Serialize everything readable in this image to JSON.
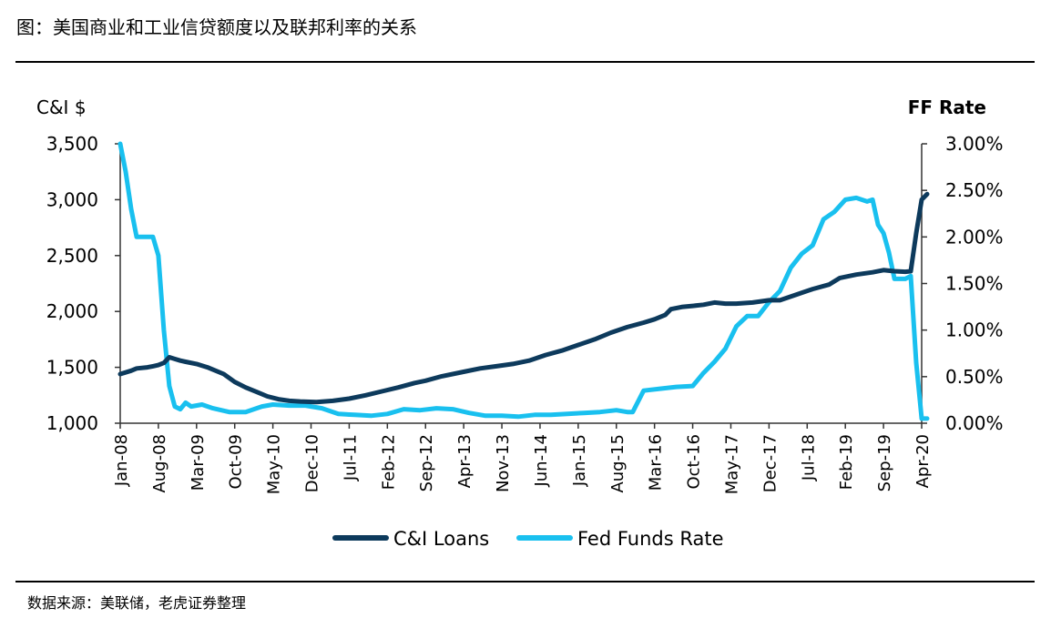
{
  "figure_title": "图：美国商业和工业信贷额度以及联邦利率的关系",
  "source_note": "数据来源：美联储，老虎证券整理",
  "chart_data": {
    "type": "line",
    "title": "",
    "ylabel_left": "C&I $",
    "ylabel_right": "FF Rate",
    "y_left": {
      "min": 1000,
      "max": 3500,
      "ticks": [
        1000,
        1500,
        2000,
        2500,
        3000,
        3500
      ],
      "tick_labels": [
        "1,000",
        "1,500",
        "2,000",
        "2,500",
        "3,000",
        "3,500"
      ]
    },
    "y_right": {
      "min": 0,
      "max": 3,
      "ticks": [
        0,
        0.5,
        1,
        1.5,
        2,
        2.5,
        3
      ],
      "tick_labels": [
        "0.00%",
        "0.50%",
        "1.00%",
        "1.50%",
        "2.00%",
        "2.50%",
        "3.00%"
      ]
    },
    "x_range": [
      "2008-01",
      "2020-04"
    ],
    "x_ticks": [
      {
        "date": "2008-01",
        "label": "Jan-08"
      },
      {
        "date": "2008-08",
        "label": "Aug-08"
      },
      {
        "date": "2009-03",
        "label": "Mar-09"
      },
      {
        "date": "2009-10",
        "label": "Oct-09"
      },
      {
        "date": "2010-05",
        "label": "May-10"
      },
      {
        "date": "2010-12",
        "label": "Dec-10"
      },
      {
        "date": "2011-07",
        "label": "Jul-11"
      },
      {
        "date": "2012-02",
        "label": "Feb-12"
      },
      {
        "date": "2012-09",
        "label": "Sep-12"
      },
      {
        "date": "2013-04",
        "label": "Apr-13"
      },
      {
        "date": "2013-11",
        "label": "Nov-13"
      },
      {
        "date": "2014-06",
        "label": "Jun-14"
      },
      {
        "date": "2015-01",
        "label": "Jan-15"
      },
      {
        "date": "2015-08",
        "label": "Aug-15"
      },
      {
        "date": "2016-03",
        "label": "Mar-16"
      },
      {
        "date": "2016-10",
        "label": "Oct-16"
      },
      {
        "date": "2017-05",
        "label": "May-17"
      },
      {
        "date": "2017-12",
        "label": "Dec-17"
      },
      {
        "date": "2018-07",
        "label": "Jul-18"
      },
      {
        "date": "2019-02",
        "label": "Feb-19"
      },
      {
        "date": "2019-09",
        "label": "Sep-19"
      },
      {
        "date": "2020-04",
        "label": "Apr-20"
      }
    ],
    "legend_position": "bottom-center",
    "grid": false,
    "series": [
      {
        "name": "C&I Loans",
        "axis": "left",
        "color": "#0d3a5c",
        "points": [
          [
            "2008-01",
            1440
          ],
          [
            "2008-03",
            1470
          ],
          [
            "2008-04",
            1490
          ],
          [
            "2008-06",
            1500
          ],
          [
            "2008-07",
            1510
          ],
          [
            "2008-08",
            1520
          ],
          [
            "2008-09",
            1540
          ],
          [
            "2008-10",
            1590
          ],
          [
            "2008-11",
            1575
          ],
          [
            "2008-12",
            1560
          ],
          [
            "2009-01",
            1550
          ],
          [
            "2009-03",
            1530
          ],
          [
            "2009-05",
            1500
          ],
          [
            "2009-06",
            1480
          ],
          [
            "2009-08",
            1440
          ],
          [
            "2009-10",
            1370
          ],
          [
            "2009-12",
            1320
          ],
          [
            "2010-02",
            1280
          ],
          [
            "2010-04",
            1240
          ],
          [
            "2010-06",
            1215
          ],
          [
            "2010-08",
            1200
          ],
          [
            "2010-10",
            1195
          ],
          [
            "2011-01",
            1190
          ],
          [
            "2011-04",
            1200
          ],
          [
            "2011-07",
            1220
          ],
          [
            "2011-10",
            1250
          ],
          [
            "2012-01",
            1285
          ],
          [
            "2012-04",
            1320
          ],
          [
            "2012-07",
            1360
          ],
          [
            "2012-09",
            1380
          ],
          [
            "2012-12",
            1420
          ],
          [
            "2013-04",
            1460
          ],
          [
            "2013-07",
            1490
          ],
          [
            "2013-10",
            1510
          ],
          [
            "2014-01",
            1530
          ],
          [
            "2014-04",
            1560
          ],
          [
            "2014-07",
            1610
          ],
          [
            "2014-10",
            1650
          ],
          [
            "2015-01",
            1700
          ],
          [
            "2015-04",
            1750
          ],
          [
            "2015-07",
            1810
          ],
          [
            "2015-10",
            1860
          ],
          [
            "2016-01",
            1900
          ],
          [
            "2016-03",
            1930
          ],
          [
            "2016-05",
            1970
          ],
          [
            "2016-06",
            2020
          ],
          [
            "2016-08",
            2040
          ],
          [
            "2016-10",
            2050
          ],
          [
            "2016-12",
            2060
          ],
          [
            "2017-02",
            2080
          ],
          [
            "2017-04",
            2070
          ],
          [
            "2017-06",
            2070
          ],
          [
            "2017-09",
            2080
          ],
          [
            "2017-12",
            2100
          ],
          [
            "2018-02",
            2100
          ],
          [
            "2018-05",
            2150
          ],
          [
            "2018-08",
            2200
          ],
          [
            "2018-11",
            2240
          ],
          [
            "2019-01",
            2300
          ],
          [
            "2019-04",
            2330
          ],
          [
            "2019-07",
            2350
          ],
          [
            "2019-09",
            2370
          ],
          [
            "2019-11",
            2360
          ],
          [
            "2020-01",
            2355
          ],
          [
            "2020-02",
            2360
          ],
          [
            "2020-03",
            2700
          ],
          [
            "2020-04",
            3000
          ],
          [
            "2020-05",
            3050
          ]
        ]
      },
      {
        "name": "Fed Funds Rate",
        "axis": "right",
        "color": "#19c0ef",
        "points": [
          [
            "2008-01",
            3.0
          ],
          [
            "2008-02",
            2.7
          ],
          [
            "2008-03",
            2.3
          ],
          [
            "2008-04",
            2.0
          ],
          [
            "2008-05",
            2.0
          ],
          [
            "2008-06",
            2.0
          ],
          [
            "2008-07",
            2.0
          ],
          [
            "2008-08",
            1.8
          ],
          [
            "2008-09",
            1.0
          ],
          [
            "2008-10",
            0.4
          ],
          [
            "2008-11",
            0.18
          ],
          [
            "2008-12",
            0.15
          ],
          [
            "2009-01",
            0.22
          ],
          [
            "2009-02",
            0.18
          ],
          [
            "2009-04",
            0.2
          ],
          [
            "2009-06",
            0.16
          ],
          [
            "2009-09",
            0.12
          ],
          [
            "2009-12",
            0.12
          ],
          [
            "2010-03",
            0.18
          ],
          [
            "2010-05",
            0.2
          ],
          [
            "2010-08",
            0.19
          ],
          [
            "2010-11",
            0.19
          ],
          [
            "2011-02",
            0.16
          ],
          [
            "2011-05",
            0.1
          ],
          [
            "2011-08",
            0.09
          ],
          [
            "2011-11",
            0.08
          ],
          [
            "2012-02",
            0.1
          ],
          [
            "2012-05",
            0.15
          ],
          [
            "2012-08",
            0.14
          ],
          [
            "2012-11",
            0.16
          ],
          [
            "2013-02",
            0.15
          ],
          [
            "2013-05",
            0.11
          ],
          [
            "2013-08",
            0.08
          ],
          [
            "2013-11",
            0.08
          ],
          [
            "2014-02",
            0.07
          ],
          [
            "2014-05",
            0.09
          ],
          [
            "2014-08",
            0.09
          ],
          [
            "2014-11",
            0.1
          ],
          [
            "2015-02",
            0.11
          ],
          [
            "2015-05",
            0.12
          ],
          [
            "2015-08",
            0.14
          ],
          [
            "2015-10",
            0.12
          ],
          [
            "2015-11",
            0.12
          ],
          [
            "2016-01",
            0.35
          ],
          [
            "2016-04",
            0.37
          ],
          [
            "2016-07",
            0.39
          ],
          [
            "2016-10",
            0.4
          ],
          [
            "2016-12",
            0.54
          ],
          [
            "2017-02",
            0.66
          ],
          [
            "2017-04",
            0.8
          ],
          [
            "2017-06",
            1.04
          ],
          [
            "2017-08",
            1.15
          ],
          [
            "2017-10",
            1.15
          ],
          [
            "2017-12",
            1.3
          ],
          [
            "2018-02",
            1.42
          ],
          [
            "2018-04",
            1.67
          ],
          [
            "2018-06",
            1.82
          ],
          [
            "2018-08",
            1.91
          ],
          [
            "2018-10",
            2.19
          ],
          [
            "2018-12",
            2.27
          ],
          [
            "2019-02",
            2.4
          ],
          [
            "2019-04",
            2.42
          ],
          [
            "2019-06",
            2.38
          ],
          [
            "2019-07",
            2.4
          ],
          [
            "2019-08",
            2.13
          ],
          [
            "2019-09",
            2.04
          ],
          [
            "2019-10",
            1.83
          ],
          [
            "2019-11",
            1.55
          ],
          [
            "2019-12",
            1.55
          ],
          [
            "2020-01",
            1.55
          ],
          [
            "2020-02",
            1.58
          ],
          [
            "2020-03",
            0.65
          ],
          [
            "2020-04",
            0.05
          ],
          [
            "2020-05",
            0.05
          ]
        ]
      }
    ]
  }
}
